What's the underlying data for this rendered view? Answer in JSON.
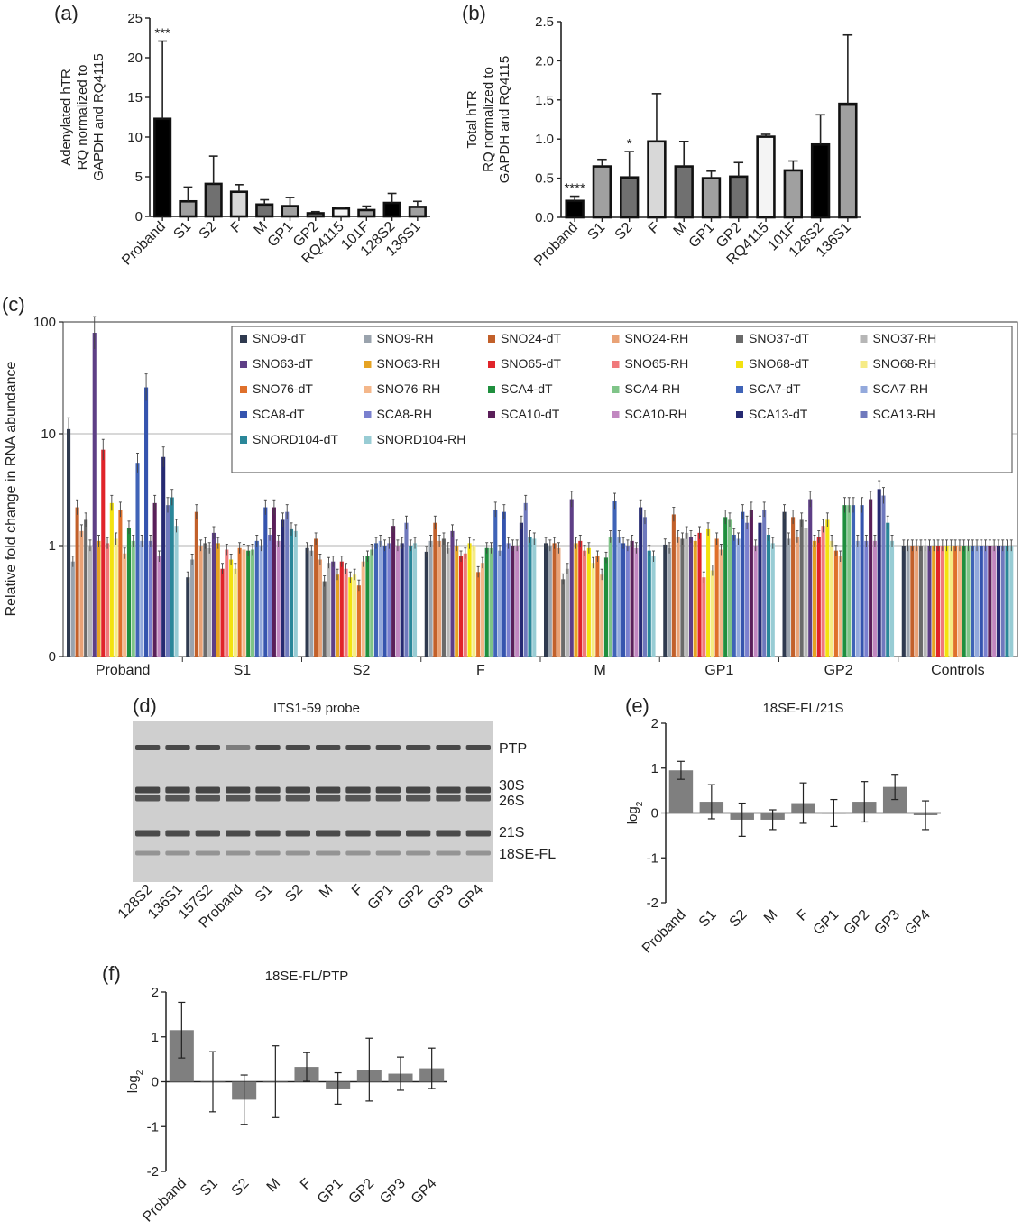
{
  "panels": {
    "a": {
      "label": "(a)",
      "chart_data": {
        "type": "bar",
        "ylabel": [
          "Adenylated hTR",
          "RQ normalized to",
          "GAPDH and RQ4115"
        ],
        "ylim": [
          0,
          25
        ],
        "yticks": [
          "0",
          "5",
          "10",
          "15",
          "20",
          "25"
        ],
        "categories": [
          "Proband",
          "S1",
          "S2",
          "F",
          "M",
          "GP1",
          "GP2",
          "RQ4115",
          "101F",
          "128S2",
          "136S1"
        ],
        "values": [
          12.3,
          1.9,
          4.1,
          3.1,
          1.5,
          1.3,
          0.4,
          1.0,
          0.8,
          1.7,
          1.2
        ],
        "errors": [
          9.8,
          1.8,
          3.5,
          0.9,
          0.6,
          1.1,
          0.2,
          0.1,
          0.5,
          1.2,
          0.7
        ],
        "colors": [
          "#000000",
          "#a0a0a0",
          "#707070",
          "#d8d8d8",
          "#707070",
          "#a0a0a0",
          "#707070",
          "#f4f4f4",
          "#a0a0a0",
          "#000000",
          "#a0a0a0"
        ],
        "annotations": [
          {
            "index": 0,
            "text": "***"
          }
        ]
      }
    },
    "b": {
      "label": "(b)",
      "chart_data": {
        "type": "bar",
        "ylabel": [
          "Total hTR",
          "RQ normalized to",
          "GAPDH and RQ4115"
        ],
        "ylim": [
          0,
          2.5
        ],
        "yticks": [
          "0.0",
          "0.5",
          "1.0",
          "1.5",
          "2.0",
          "2.5"
        ],
        "categories": [
          "Proband",
          "S1",
          "S2",
          "F",
          "M",
          "GP1",
          "GP2",
          "RQ4115",
          "101F",
          "128S2",
          "136S1"
        ],
        "values": [
          0.21,
          0.65,
          0.51,
          0.97,
          0.65,
          0.5,
          0.52,
          1.03,
          0.6,
          0.93,
          1.45
        ],
        "errors": [
          0.06,
          0.09,
          0.33,
          0.61,
          0.32,
          0.09,
          0.18,
          0.03,
          0.12,
          0.38,
          0.88
        ],
        "colors": [
          "#000000",
          "#a0a0a0",
          "#707070",
          "#d8d8d8",
          "#707070",
          "#a0a0a0",
          "#707070",
          "#f4f4f4",
          "#a0a0a0",
          "#000000",
          "#a0a0a0"
        ],
        "annotations": [
          {
            "index": 0,
            "text": "****"
          },
          {
            "index": 2,
            "text": "*"
          }
        ]
      }
    },
    "c": {
      "label": "(c)",
      "chart_data": {
        "type": "bar",
        "ylabel": "Relative fold change in RNA abundance",
        "yscale": "log",
        "yticks": [
          "0",
          "1",
          "10",
          "100"
        ],
        "groups": [
          "Proband",
          "S1",
          "S2",
          "F",
          "M",
          "GP1",
          "GP2",
          "Controls"
        ],
        "series": [
          {
            "name": "SNO9-dT",
            "color": "#2f3a4f",
            "values": [
              11,
              0.52,
              0.95,
              0.88,
              1.05,
              1.02,
              2.0,
              1.0
            ]
          },
          {
            "name": "SNO9-RH",
            "color": "#9aa3ad",
            "values": [
              0.72,
              0.75,
              0.9,
              1.1,
              1.0,
              0.95,
              1.15,
              1.0
            ]
          },
          {
            "name": "SNO24-dT",
            "color": "#c2602a",
            "values": [
              2.2,
              2.0,
              1.15,
              1.6,
              1.05,
              1.9,
              1.8,
              1.0
            ]
          },
          {
            "name": "SNO24-RH",
            "color": "#e9a276",
            "values": [
              1.35,
              1.0,
              0.75,
              1.1,
              0.95,
              1.2,
              1.2,
              1.0
            ]
          },
          {
            "name": "SNO37-dT",
            "color": "#6a6a6a",
            "values": [
              1.7,
              1.05,
              0.48,
              1.15,
              0.5,
              1.15,
              1.7,
              1.0
            ]
          },
          {
            "name": "SNO37-RH",
            "color": "#b6b6b6",
            "values": [
              1.0,
              0.95,
              0.7,
              0.95,
              0.62,
              1.3,
              1.45,
              1.0
            ]
          },
          {
            "name": "SNO63-dT",
            "color": "#5e3f86",
            "values": [
              80,
              1.3,
              0.72,
              1.35,
              2.6,
              1.2,
              2.6,
              1.0
            ]
          },
          {
            "name": "SNO63-RH",
            "color": "#e6a323",
            "values": [
              1.1,
              1.05,
              0.55,
              1.0,
              1.05,
              1.1,
              1.1,
              1.0
            ]
          },
          {
            "name": "SNO65-dT",
            "color": "#e0242a",
            "values": [
              7.2,
              0.62,
              0.72,
              0.8,
              1.1,
              1.3,
              1.2,
              1.0
            ]
          },
          {
            "name": "SNO65-RH",
            "color": "#f0797b",
            "values": [
              1.05,
              0.92,
              0.62,
              0.85,
              0.9,
              0.52,
              1.5,
              1.0
            ]
          },
          {
            "name": "SNO68-dT",
            "color": "#f3e210",
            "values": [
              2.4,
              0.75,
              0.52,
              1.05,
              0.95,
              1.4,
              1.7,
              1.0
            ]
          },
          {
            "name": "SNO68-RH",
            "color": "#f6eb85",
            "values": [
              1.15,
              0.62,
              0.55,
              1.0,
              0.7,
              0.6,
              1.1,
              1.0
            ]
          },
          {
            "name": "SNO76-dT",
            "color": "#df702b",
            "values": [
              2.1,
              0.95,
              0.44,
              0.58,
              0.8,
              1.15,
              0.9,
              1.0
            ]
          },
          {
            "name": "SNO76-RH",
            "color": "#f4b78a",
            "values": [
              0.85,
              0.92,
              0.72,
              0.7,
              0.55,
              0.92,
              0.8,
              1.0
            ]
          },
          {
            "name": "SCA4-dT",
            "color": "#1f8f3e",
            "values": [
              1.45,
              0.9,
              0.8,
              0.95,
              0.78,
              1.8,
              2.3,
              1.0
            ]
          },
          {
            "name": "SCA4-RH",
            "color": "#7fc488",
            "values": [
              1.1,
              0.92,
              0.92,
              0.95,
              1.2,
              1.7,
              2.3,
              1.0
            ]
          },
          {
            "name": "SCA7-dT",
            "color": "#3f63b7",
            "values": [
              5.5,
              1.1,
              1.05,
              2.1,
              2.5,
              1.25,
              2.3,
              1.0
            ]
          },
          {
            "name": "SCA7-RH",
            "color": "#93a9dc",
            "values": [
              1.1,
              1.0,
              1.1,
              0.9,
              1.2,
              1.15,
              1.1,
              1.0
            ]
          },
          {
            "name": "SCA8-dT",
            "color": "#3554ae",
            "values": [
              26,
              2.2,
              1.0,
              2.0,
              1.05,
              2.0,
              2.3,
              1.0
            ]
          },
          {
            "name": "SCA8-RH",
            "color": "#7a80cf",
            "values": [
              1.1,
              1.25,
              1.05,
              1.05,
              1.0,
              1.6,
              1.1,
              1.0
            ]
          },
          {
            "name": "SCA10-dT",
            "color": "#5a1f59",
            "values": [
              2.4,
              2.2,
              1.5,
              1.0,
              1.1,
              2.1,
              2.6,
              1.0
            ]
          },
          {
            "name": "SCA10-RH",
            "color": "#c187c0",
            "values": [
              0.8,
              1.1,
              1.0,
              1.0,
              0.95,
              1.0,
              1.1,
              1.0
            ]
          },
          {
            "name": "SCA13-dT",
            "color": "#262a72",
            "values": [
              6.2,
              1.7,
              1.05,
              1.6,
              2.2,
              1.6,
              3.2,
              1.0
            ]
          },
          {
            "name": "SCA13-RH",
            "color": "#6f79bd",
            "values": [
              2.3,
              2.0,
              1.6,
              2.4,
              1.8,
              2.1,
              2.8,
              1.0
            ]
          },
          {
            "name": "SNORD104-dT",
            "color": "#2a8799",
            "values": [
              2.7,
              1.4,
              1.0,
              1.2,
              0.9,
              1.25,
              1.6,
              1.0
            ]
          },
          {
            "name": "SNORD104-RH",
            "color": "#98ccd4",
            "values": [
              1.5,
              1.35,
              1.05,
              1.15,
              0.8,
              1.05,
              1.1,
              1.0
            ]
          }
        ]
      }
    },
    "d": {
      "label": "(d)",
      "title": "ITS1-59 probe",
      "lanes": [
        "128S2",
        "136S1",
        "157S2",
        "Proband",
        "S1",
        "S2",
        "M",
        "F",
        "GP1",
        "GP2",
        "GP3",
        "GP4"
      ],
      "bands": [
        "PTP",
        "30S",
        "26S",
        "21S",
        "18SE-FL"
      ]
    },
    "e": {
      "label": "(e)",
      "chart_data": {
        "type": "bar",
        "title": "18SE-FL/21S",
        "ylabel": "log2",
        "ylim": [
          -2,
          2
        ],
        "yticks": [
          "2",
          "1",
          "0",
          "-1",
          "-2"
        ],
        "categories": [
          "Proband",
          "S1",
          "S2",
          "M",
          "F",
          "GP1",
          "GP2",
          "GP3",
          "GP4"
        ],
        "values": [
          0.95,
          0.25,
          -0.15,
          -0.15,
          0.22,
          0.0,
          0.25,
          0.58,
          -0.05
        ],
        "errors": [
          0.2,
          0.38,
          0.37,
          0.22,
          0.45,
          0.3,
          0.45,
          0.28,
          0.32
        ],
        "color": "#7f7f7f"
      }
    },
    "f": {
      "label": "(f)",
      "chart_data": {
        "type": "bar",
        "title": "18SE-FL/PTP",
        "ylabel": "log2",
        "ylim": [
          -2,
          2
        ],
        "yticks": [
          "2",
          "1",
          "0",
          "-1",
          "-2"
        ],
        "categories": [
          "Proband",
          "S1",
          "S2",
          "M",
          "F",
          "GP1",
          "GP2",
          "GP3",
          "GP4"
        ],
        "values": [
          1.15,
          0.0,
          -0.4,
          0.0,
          0.33,
          -0.15,
          0.27,
          0.18,
          0.3
        ],
        "errors": [
          0.62,
          0.67,
          0.55,
          0.8,
          0.32,
          0.35,
          0.7,
          0.37,
          0.45
        ],
        "color": "#7f7f7f"
      }
    }
  }
}
